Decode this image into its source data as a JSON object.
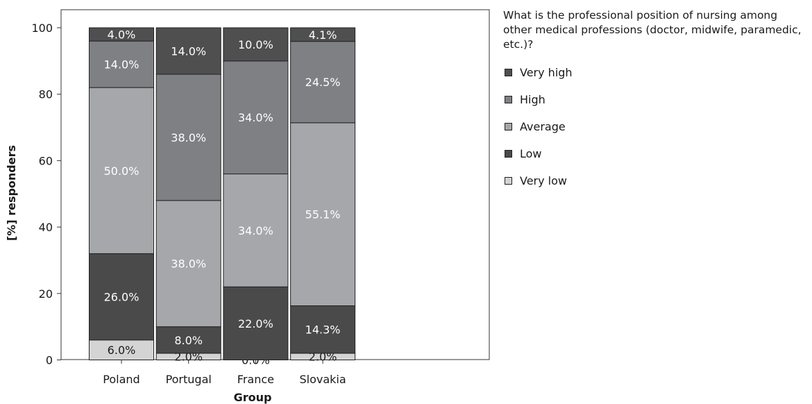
{
  "chart_data": {
    "type": "bar",
    "stacked": true,
    "title": "What is the professional position of nursing among other medical professions (doctor, midwife, paramedic, etc.)?",
    "xlabel": "Group",
    "ylabel": "[%] responders",
    "ylim": [
      0,
      100
    ],
    "yticks": [
      0,
      20,
      40,
      60,
      80,
      100
    ],
    "categories": [
      "Poland",
      "Portugal",
      "France",
      "Slovakia"
    ],
    "legend_position": "right",
    "series": [
      {
        "name": "Very low",
        "color": "#d4d4d4",
        "values": [
          6.0,
          2.0,
          0.0,
          2.0
        ],
        "labels": [
          "6.0%",
          "2.0%",
          "0.0%",
          "2.0%"
        ]
      },
      {
        "name": "Low",
        "color": "#4a4a4a",
        "values": [
          26.0,
          8.0,
          22.0,
          14.3
        ],
        "labels": [
          "26.0%",
          "8.0%",
          "22.0%",
          "14.3%"
        ]
      },
      {
        "name": "Average",
        "color": "#a6a7ab",
        "values": [
          50.0,
          38.0,
          34.0,
          55.1
        ],
        "labels": [
          "50.0%",
          "38.0%",
          "34.0%",
          "55.1%"
        ]
      },
      {
        "name": "High",
        "color": "#7f8084",
        "values": [
          14.0,
          38.0,
          34.0,
          24.5
        ],
        "labels": [
          "14.0%",
          "38.0%",
          "34.0%",
          "24.5%"
        ]
      },
      {
        "name": "Very high",
        "color": "#4f4f50",
        "values": [
          4.0,
          14.0,
          10.0,
          4.1
        ],
        "labels": [
          "4.0%",
          "14.0%",
          "10.0%",
          "4.1%"
        ]
      }
    ],
    "legend_order": [
      "Very high",
      "High",
      "Average",
      "Low",
      "Very low"
    ]
  }
}
